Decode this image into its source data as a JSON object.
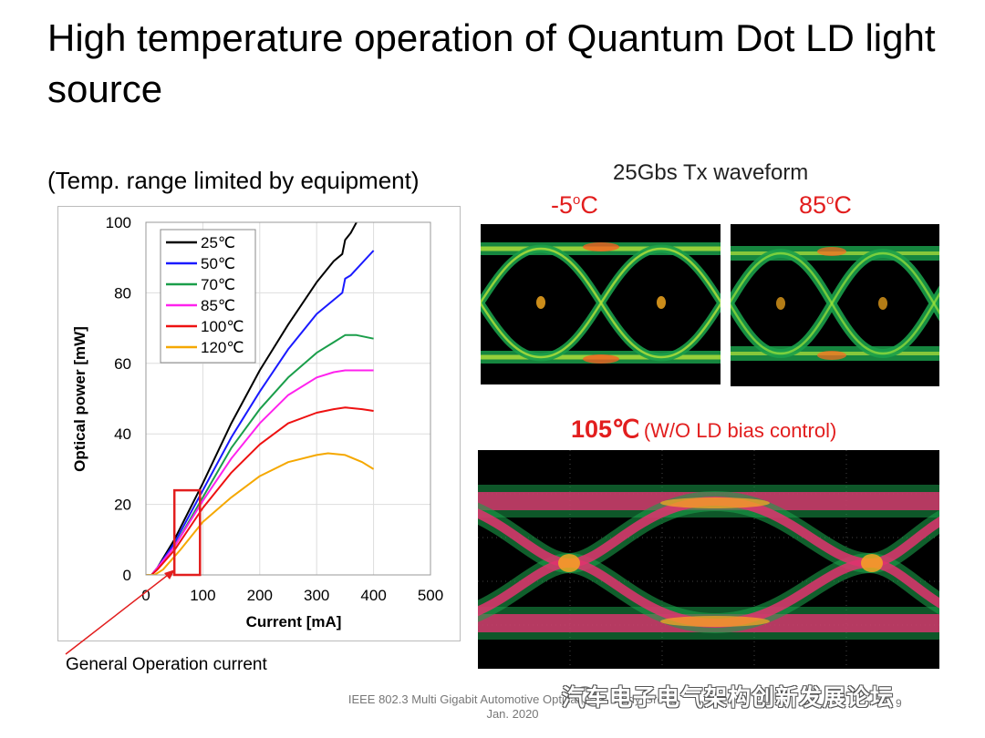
{
  "slide": {
    "title": "High temperature operation of Quantum Dot LD light source",
    "subtitle": "(Temp. range limited by equipment)",
    "annotation": "General Operation current",
    "waveform_title": "25Gbs Tx waveform",
    "eye_labels": {
      "minus5": {
        "value": "-5",
        "sup": "o",
        "unit": "C"
      },
      "plus85": {
        "value": "85",
        "sup": "o",
        "unit": "C"
      },
      "plus105": {
        "value": "105℃",
        "note": "(W/O LD bias control)"
      }
    },
    "footer_line1": "IEEE 802.3 Multi Gigabit Automotive Optical PHY Study Group",
    "footer_line2": "Jan. 2020",
    "page_number": "9",
    "watermark": "汽车电子电气架构创新发展论坛"
  },
  "chart_data": {
    "type": "line",
    "title": "",
    "xlabel": "Current [mA]",
    "ylabel": "Optical power [mW]",
    "xlim": [
      0,
      500
    ],
    "ylim": [
      0,
      100
    ],
    "xticks": [
      "0",
      "100",
      "200",
      "300",
      "400",
      "500"
    ],
    "yticks": [
      "0",
      "20",
      "40",
      "60",
      "80",
      "100"
    ],
    "legend_position": "top-left",
    "highlight_box": {
      "x_range": [
        50,
        95
      ],
      "y_range": [
        0,
        24
      ],
      "color": "#e21e1e"
    },
    "series": [
      {
        "name": "25℃",
        "color": "#000000",
        "x": [
          0,
          10,
          20,
          50,
          100,
          150,
          200,
          250,
          300,
          330,
          345,
          350,
          360,
          370
        ],
        "y": [
          0,
          0,
          2,
          10,
          26,
          43,
          58,
          71,
          83,
          89,
          91,
          95,
          97,
          100
        ]
      },
      {
        "name": "50℃",
        "color": "#1a1aff",
        "x": [
          0,
          10,
          20,
          50,
          100,
          150,
          200,
          250,
          300,
          330,
          345,
          350,
          360,
          400
        ],
        "y": [
          0,
          0,
          2,
          9,
          24,
          39,
          52,
          64,
          74,
          78,
          80,
          84,
          85,
          92
        ]
      },
      {
        "name": "70℃",
        "color": "#1a9e4a",
        "x": [
          0,
          10,
          20,
          50,
          100,
          150,
          200,
          250,
          300,
          330,
          350,
          370,
          400
        ],
        "y": [
          0,
          0,
          2,
          8,
          22,
          36,
          47,
          56,
          63,
          66,
          68,
          68,
          67
        ]
      },
      {
        "name": "85℃",
        "color": "#ff22ee",
        "x": [
          0,
          10,
          20,
          50,
          100,
          150,
          200,
          250,
          300,
          330,
          350,
          380,
          400
        ],
        "y": [
          0,
          0,
          2,
          8,
          21,
          33,
          43,
          51,
          56,
          57.5,
          58,
          58,
          58
        ]
      },
      {
        "name": "100℃",
        "color": "#ee1111",
        "x": [
          0,
          10,
          20,
          50,
          100,
          150,
          200,
          250,
          300,
          330,
          350,
          380,
          400
        ],
        "y": [
          0,
          0,
          1.5,
          7,
          19,
          29,
          37,
          43,
          46,
          47,
          47.5,
          47,
          46.5
        ]
      },
      {
        "name": "120℃",
        "color": "#f5a800",
        "x": [
          0,
          15,
          30,
          60,
          100,
          150,
          200,
          250,
          300,
          320,
          350,
          380,
          400
        ],
        "y": [
          0,
          0,
          1.5,
          7,
          15,
          22,
          28,
          32,
          34,
          34.5,
          34,
          32,
          30
        ]
      }
    ]
  }
}
